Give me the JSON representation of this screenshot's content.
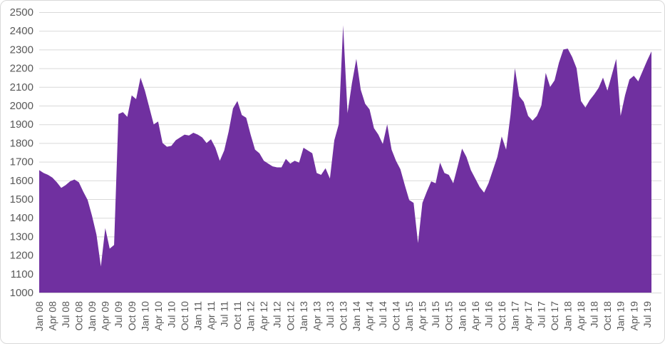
{
  "chart": {
    "background": "#FFFFFF",
    "border_color": "#D9D9D9",
    "gridline_color": "#D9D9D9",
    "label_color": "#595959",
    "area_color": "#7030A0"
  },
  "chart_data": {
    "type": "area",
    "title": "",
    "xlabel": "",
    "ylabel": "",
    "legend": "none",
    "grid": "horizontal",
    "ylim": [
      1000,
      2500
    ],
    "y_ticks": [
      1000,
      1100,
      1200,
      1300,
      1400,
      1500,
      1600,
      1700,
      1800,
      1900,
      2000,
      2100,
      2200,
      2300,
      2400,
      2500
    ],
    "x_tick_every": 3,
    "categories": [
      "Jan 08",
      "Feb 08",
      "Mar 08",
      "Apr 08",
      "May 08",
      "Jun 08",
      "Jul 08",
      "Aug 08",
      "Sep 08",
      "Oct 08",
      "Nov 08",
      "Dec 08",
      "Jan 09",
      "Feb 09",
      "Mar 09",
      "Apr 09",
      "May 09",
      "Jun 09",
      "Jul 09",
      "Aug 09",
      "Sep 09",
      "Oct 09",
      "Nov 09",
      "Dec 09",
      "Jan 10",
      "Feb 10",
      "Mar 10",
      "Apr 10",
      "May 10",
      "Jun 10",
      "Jul 10",
      "Aug 10",
      "Sep 10",
      "Oct 10",
      "Nov 10",
      "Dec 10",
      "Jan 11",
      "Feb 11",
      "Mar 11",
      "Apr 11",
      "May 11",
      "Jun 11",
      "Jul 11",
      "Aug 11",
      "Sep 11",
      "Oct 11",
      "Nov 11",
      "Dec 11",
      "Jan 12",
      "Feb 12",
      "Mar 12",
      "Apr 12",
      "May 12",
      "Jun 12",
      "Jul 12",
      "Aug 12",
      "Sep 12",
      "Oct 12",
      "Nov 12",
      "Dec 12",
      "Jan 13",
      "Feb 13",
      "Mar 13",
      "Apr 13",
      "May 13",
      "Jun 13",
      "Jul 13",
      "Aug 13",
      "Sep 13",
      "Oct 13",
      "Nov 13",
      "Dec 13",
      "Jan 14",
      "Feb 14",
      "Mar 14",
      "Apr 14",
      "May 14",
      "Jun 14",
      "Jul 14",
      "Aug 14",
      "Sep 14",
      "Oct 14",
      "Nov 14",
      "Dec 14",
      "Jan 15",
      "Feb 15",
      "Mar 15",
      "Apr 15",
      "May 15",
      "Jun 15",
      "Jul 15",
      "Aug 15",
      "Sep 15",
      "Oct 15",
      "Nov 15",
      "Dec 15",
      "Jan 16",
      "Feb 16",
      "Mar 16",
      "Apr 16",
      "May 16",
      "Jun 16",
      "Jul 16",
      "Aug 16",
      "Sep 16",
      "Oct 16",
      "Nov 16",
      "Dec 16",
      "Jan 17",
      "Feb 17",
      "Mar 17",
      "Apr 17",
      "May 17",
      "Jun 17",
      "Jul 17",
      "Aug 17",
      "Sep 17",
      "Oct 17",
      "Nov 17",
      "Dec 17",
      "Jan 18",
      "Feb 18",
      "Mar 18",
      "Apr 18",
      "May 18",
      "Jun 18",
      "Jul 18",
      "Aug 18",
      "Sep 18",
      "Oct 18",
      "Nov 18",
      "Dec 18",
      "Jan 19",
      "Feb 19",
      "Mar 19",
      "Apr 19",
      "May 19",
      "Jun 19",
      "Jul 19",
      "Aug 19"
    ],
    "series": [
      {
        "name": "value",
        "color": "#7030A0",
        "values": [
          1655,
          1640,
          1630,
          1615,
          1590,
          1560,
          1575,
          1595,
          1605,
          1590,
          1540,
          1495,
          1410,
          1310,
          1140,
          1345,
          1235,
          1255,
          1955,
          1965,
          1940,
          2055,
          2035,
          2150,
          2080,
          1990,
          1900,
          1915,
          1800,
          1780,
          1785,
          1815,
          1830,
          1845,
          1840,
          1855,
          1845,
          1830,
          1800,
          1820,
          1775,
          1705,
          1760,
          1860,
          1985,
          2025,
          1950,
          1935,
          1845,
          1765,
          1745,
          1705,
          1690,
          1675,
          1670,
          1670,
          1715,
          1690,
          1705,
          1695,
          1775,
          1760,
          1745,
          1640,
          1630,
          1665,
          1610,
          1815,
          1900,
          2430,
          1960,
          2120,
          2250,
          2085,
          2010,
          1980,
          1880,
          1845,
          1795,
          1900,
          1765,
          1705,
          1660,
          1575,
          1495,
          1480,
          1265,
          1480,
          1540,
          1595,
          1585,
          1695,
          1640,
          1630,
          1585,
          1675,
          1770,
          1725,
          1655,
          1610,
          1565,
          1535,
          1585,
          1655,
          1725,
          1835,
          1765,
          1950,
          2200,
          2050,
          2020,
          1945,
          1920,
          1945,
          2000,
          2175,
          2100,
          2135,
          2230,
          2300,
          2305,
          2260,
          2200,
          2025,
          1990,
          2030,
          2060,
          2095,
          2150,
          2080,
          2165,
          2250,
          1945,
          2055,
          2140,
          2160,
          2130,
          2185,
          2240,
          2290
        ]
      }
    ]
  }
}
